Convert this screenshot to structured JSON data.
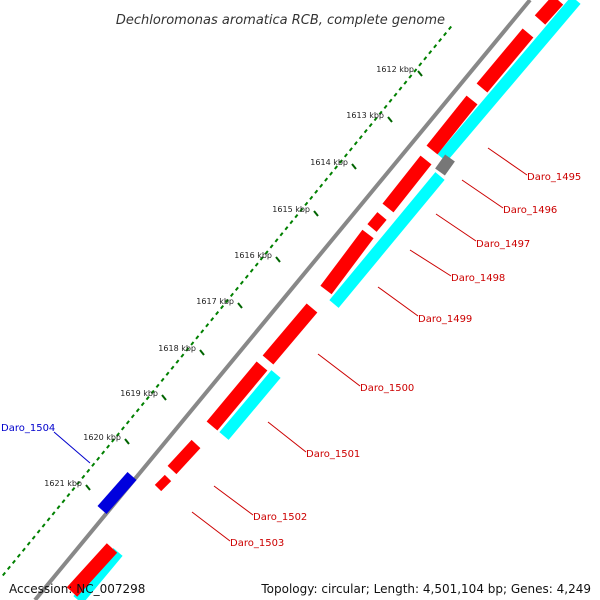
{
  "title": "Dechloromonas aromatica RCB, complete genome",
  "footer": {
    "accession": "Accession: NC_007298",
    "topology": "Topology: circular; Length: 4,501,104 bp; Genes: 4,249"
  },
  "colors": {
    "backbone": "#888888",
    "forward_cds": "#ff0000",
    "reverse_cds": "#0000dd",
    "other_gene": "#777777",
    "cds_track": "#00ffff",
    "tick_minor": "#008000",
    "tick_major": "#006400",
    "label_red": "#cc0000",
    "label_blue": "#0000cc"
  },
  "ticks": [
    {
      "label": "1612 kbp"
    },
    {
      "label": "1613 kbp"
    },
    {
      "label": "1614 kbp"
    },
    {
      "label": "1615 kbp"
    },
    {
      "label": "1616 kbp"
    },
    {
      "label": "1617 kbp"
    },
    {
      "label": "1618 kbp"
    },
    {
      "label": "1619 kbp"
    },
    {
      "label": "1620 kbp"
    },
    {
      "label": "1621 kbp"
    }
  ],
  "genes": [
    {
      "label": "Daro_1495",
      "color": "red"
    },
    {
      "label": "Daro_1496",
      "color": "red"
    },
    {
      "label": "Daro_1497",
      "color": "red"
    },
    {
      "label": "Daro_1498",
      "color": "red"
    },
    {
      "label": "Daro_1499",
      "color": "red"
    },
    {
      "label": "Daro_1500",
      "color": "red"
    },
    {
      "label": "Daro_1501",
      "color": "red"
    },
    {
      "label": "Daro_1502",
      "color": "red"
    },
    {
      "label": "Daro_1503",
      "color": "red"
    },
    {
      "label": "Daro_1504",
      "color": "blue"
    }
  ]
}
